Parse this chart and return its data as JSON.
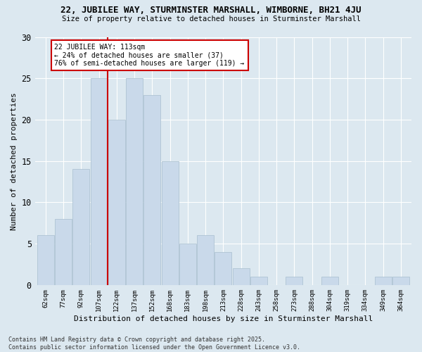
{
  "title1": "22, JUBILEE WAY, STURMINSTER MARSHALL, WIMBORNE, BH21 4JU",
  "title2": "Size of property relative to detached houses in Sturminster Marshall",
  "xlabel": "Distribution of detached houses by size in Sturminster Marshall",
  "ylabel": "Number of detached properties",
  "categories": [
    "62sqm",
    "77sqm",
    "92sqm",
    "107sqm",
    "122sqm",
    "137sqm",
    "152sqm",
    "168sqm",
    "183sqm",
    "198sqm",
    "213sqm",
    "228sqm",
    "243sqm",
    "258sqm",
    "273sqm",
    "288sqm",
    "304sqm",
    "319sqm",
    "334sqm",
    "349sqm",
    "364sqm"
  ],
  "values": [
    6,
    8,
    14,
    25,
    20,
    25,
    23,
    15,
    5,
    6,
    4,
    2,
    1,
    0,
    1,
    0,
    1,
    0,
    0,
    1,
    1
  ],
  "bar_color": "#c9d9ea",
  "bar_edge_color": "#a8bece",
  "vline_x": 3.5,
  "vline_color": "#cc0000",
  "annotation_text": "22 JUBILEE WAY: 113sqm\n← 24% of detached houses are smaller (37)\n76% of semi-detached houses are larger (119) →",
  "annotation_box_color": "#ffffff",
  "annotation_box_edge": "#cc0000",
  "ylim": [
    0,
    30
  ],
  "yticks": [
    0,
    5,
    10,
    15,
    20,
    25,
    30
  ],
  "footer1": "Contains HM Land Registry data © Crown copyright and database right 2025.",
  "footer2": "Contains public sector information licensed under the Open Government Licence v3.0.",
  "bg_color": "#dce8f0"
}
